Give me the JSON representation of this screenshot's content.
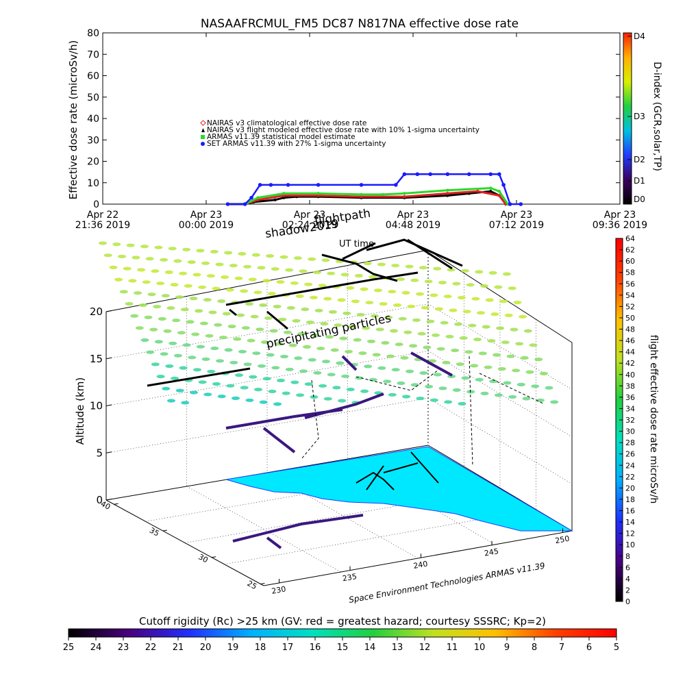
{
  "chart_data": [
    {
      "type": "scatter",
      "title": "NASAAFRCMUL_FM5 DC87 N817NA effective dose rate",
      "ylabel": "Effective dose rate (microSv/h)",
      "ylim": [
        0,
        80
      ],
      "yticks": [
        "0",
        "10",
        "20",
        "30",
        "40",
        "50",
        "60",
        "70",
        "80"
      ],
      "x_range_hours": [
        0,
        12
      ],
      "xticks": [
        {
          "line1": "Apr 22",
          "line2": "21:36 2019"
        },
        {
          "line1": "Apr 23",
          "line2": "00:00 2019"
        },
        {
          "line1": "Apr 23",
          "line2": "02:24 2019"
        },
        {
          "line1": "Apr 23",
          "line2": "04:48 2019"
        },
        {
          "line1": "Apr 23",
          "line2": "07:12 2019"
        },
        {
          "line1": "Apr 23",
          "line2": "09:36 2019"
        }
      ],
      "legend": [
        {
          "label": "NAIRAS v3 climatological effective dose rate",
          "color": "#e02020",
          "marker": "diamond"
        },
        {
          "label": "NAIRAS v3 flight modeled effective dose rate with 10% 1-sigma uncertainty",
          "color": "#000000",
          "marker": "triangle"
        },
        {
          "label": "ARMAS v11.39 statistical model estimate",
          "color": "#2ad82a",
          "marker": "square"
        },
        {
          "label": "SET ARMAS v11.39 with 27% 1-sigma uncertainty",
          "color": "#1a1aff",
          "marker": "circle"
        }
      ],
      "series": [
        {
          "name": "NAIRAS v3 flight modeled effective dose rate with 10% 1-sigma uncertainty",
          "color": "#000000",
          "x": [
            2.9,
            3.3,
            3.5,
            4.0,
            4.2,
            4.5,
            5.0,
            6.0,
            7.0,
            8.0,
            8.5,
            9.0,
            9.2,
            9.35
          ],
          "values": [
            0,
            0,
            1,
            2,
            3,
            3.5,
            3.5,
            3,
            3,
            4,
            5,
            6,
            4,
            0
          ]
        },
        {
          "name": "NAIRAS v3 climatological effective dose rate",
          "color": "#e02020",
          "x": [
            3.3,
            3.6,
            4.2,
            5.0,
            6.0,
            7.0,
            8.0,
            8.7,
            9.2,
            9.35
          ],
          "values": [
            0,
            2,
            4,
            4,
            3.5,
            3.5,
            5,
            6,
            4,
            0
          ]
        },
        {
          "name": "ARMAS v11.39 statistical model estimate",
          "color": "#2ad82a",
          "x": [
            3.3,
            3.6,
            4.2,
            5.0,
            6.0,
            6.5,
            7.0,
            8.0,
            9.0,
            9.2,
            9.4
          ],
          "values": [
            0,
            3,
            5,
            5,
            4.5,
            4.5,
            5,
            6.5,
            7.5,
            6,
            0
          ]
        },
        {
          "name": "SET ARMAS v11.39 with 27% 1-sigma uncertainty",
          "color": "#1a1aff",
          "x": [
            2.9,
            3.3,
            3.45,
            3.65,
            3.9,
            4.3,
            5.0,
            6.0,
            6.8,
            7.0,
            7.3,
            7.6,
            8.0,
            8.5,
            9.0,
            9.2,
            9.3,
            9.45,
            9.7
          ],
          "values": [
            0,
            0,
            3,
            9,
            9,
            9,
            9,
            9,
            9,
            14,
            14,
            14,
            14,
            14,
            14,
            14,
            9,
            0,
            0
          ]
        }
      ],
      "d_index_colorbar": {
        "label": "D-index (GCR,solar,TP)",
        "ticks": [
          "D0",
          "D1",
          "D2",
          "D3",
          "D4"
        ],
        "colors": [
          "#000000",
          "#3c0060",
          "#1f3cff",
          "#00c0e0",
          "#20d040",
          "#d8f000",
          "#ffb000",
          "#ff2000"
        ]
      }
    },
    {
      "type": "scatter",
      "title": "",
      "zlabel": "Altitude (km)",
      "zticks": [
        "0",
        "5",
        "10",
        "15",
        "20"
      ],
      "latitude_ticks": [
        "40",
        "35",
        "30",
        "25"
      ],
      "longitude_ticks": [
        "230",
        "235",
        "240",
        "245",
        "250"
      ],
      "annotations": [
        "shadow2019",
        "flightpath",
        "UT time",
        "precipitating particles"
      ],
      "credit": "Space Environment Technologies ARMAS v11.39",
      "dose_colorbar": {
        "label": "flight effective dose rate microSv/h",
        "ticks": [
          "0",
          "2",
          "4",
          "6",
          "8",
          "10",
          "12",
          "14",
          "16",
          "18",
          "20",
          "22",
          "24",
          "26",
          "28",
          "30",
          "32",
          "34",
          "36",
          "38",
          "40",
          "42",
          "44",
          "46",
          "48",
          "50",
          "52",
          "54",
          "56",
          "58",
          "60",
          "62",
          "64"
        ],
        "colors": [
          "#000000",
          "#4a0080",
          "#2030ff",
          "#00b0ff",
          "#00e0c0",
          "#20d040",
          "#c0e020",
          "#ffc000",
          "#ff4000",
          "#ff0000"
        ]
      },
      "cutoff_colorbar": {
        "label": "Cutoff rigidity (Rc) >25 km (GV: red = greatest hazard; courtesy SSSRC; Kp=2)",
        "ticks": [
          "25",
          "24",
          "23",
          "22",
          "21",
          "20",
          "19",
          "18",
          "17",
          "16",
          "15",
          "14",
          "13",
          "12",
          "11",
          "10",
          "9",
          "8",
          "7",
          "6",
          "5"
        ],
        "colors": [
          "#000000",
          "#4a0080",
          "#2030ff",
          "#00b0ff",
          "#00e0c0",
          "#20d040",
          "#c0e020",
          "#ffc000",
          "#ff4000",
          "#ff0000"
        ]
      }
    }
  ]
}
